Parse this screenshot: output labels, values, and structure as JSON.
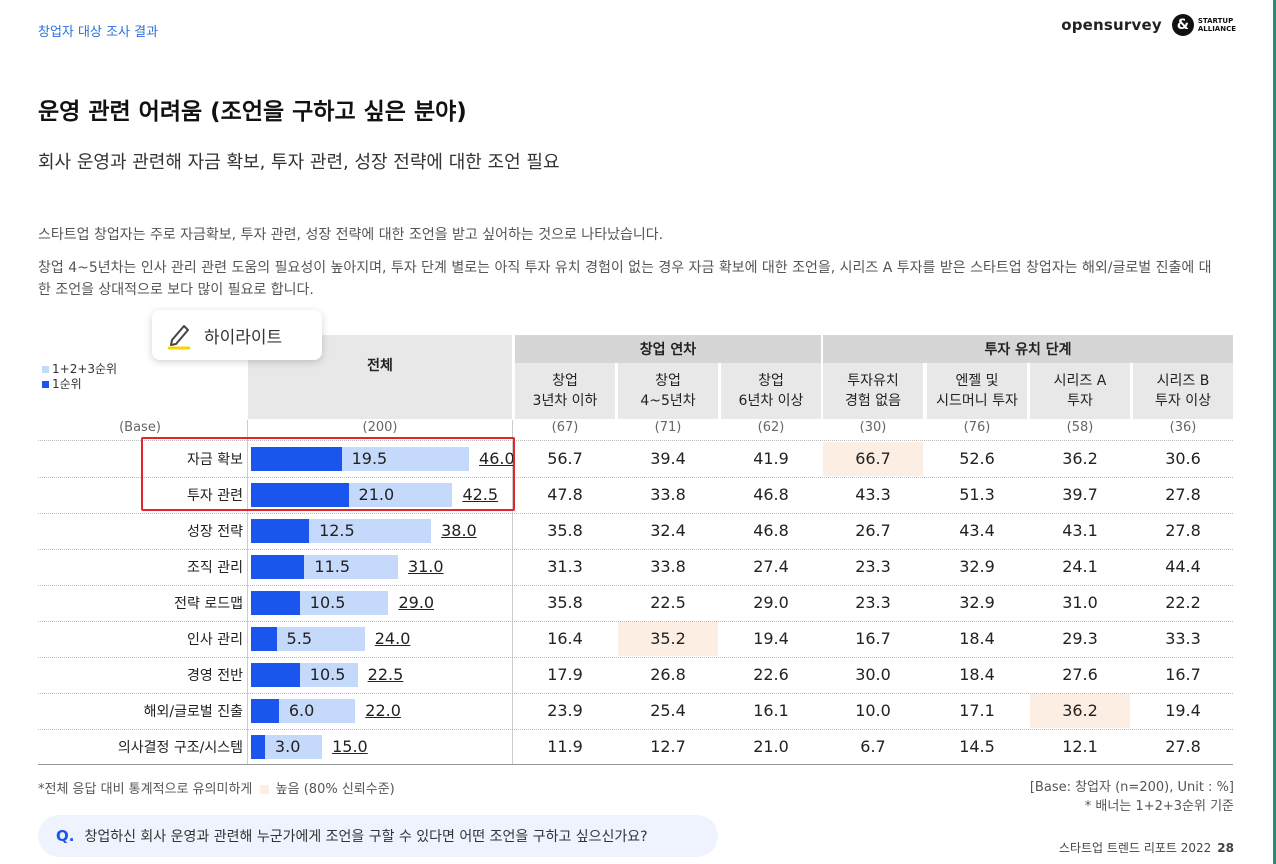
{
  "header": {
    "section": "창업자 대상 조사 결과",
    "brand1": "opensurvey",
    "brand2_line1": "STARTUP",
    "brand2_line2": "ALLIANCE"
  },
  "title": "운영 관련 어려움 (조언을 구하고 싶은 분야)",
  "subtitle": "회사 운영과 관련해 자금 확보, 투자 관련, 성장 전략에 대한 조언 필요",
  "desc1": "스타트업 창업자는 주로 자금확보, 투자 관련, 성장 전략에 대한 조언을 받고 싶어하는 것으로 나타났습니다.",
  "desc2": "창업 4~5년차는 인사 관리 관련 도움의 필요성이 높아지며, 투자 단계 별로는 아직 투자 유치 경험이 없는 경우 자금 확보에 대한 조언을, 시리즈 A 투자를 받은 스타트업 창업자는 해외/글로벌 진출에 대한 조언을 상대적으로 보다 많이 필요로 합니다.",
  "highlight_button": "하이라이트",
  "legend": {
    "top3": "1+2+3순위",
    "top1": "1순위",
    "light_color": "#c5d9fb",
    "dark_color": "#1a56ee"
  },
  "table": {
    "total_header": "전체",
    "group_years": "창업 연차",
    "group_invest": "투자 유치 단계",
    "columns": [
      "창업\n3년차 이하",
      "창업\n4~5년차",
      "창업\n6년차 이상",
      "투자유치\n경험 없음",
      "엔젤 및\n시드머니 투자",
      "시리즈 A\n투자",
      "시리즈 B\n투자 이상"
    ],
    "base_label": "(Base)",
    "base_total": "(200)",
    "bases": [
      "(67)",
      "(71)",
      "(62)",
      "(30)",
      "(76)",
      "(58)",
      "(36)"
    ],
    "highlight_color": "#fdeee4",
    "rows": [
      {
        "label": "자금 확보",
        "top1": 19.5,
        "top3": 46.0,
        "top1_text": "19.5",
        "top3_text": "46.0",
        "values": [
          "56.7",
          "39.4",
          "41.9",
          "66.7",
          "52.6",
          "36.2",
          "30.6"
        ],
        "highlight": [
          3
        ]
      },
      {
        "label": "투자 관련",
        "top1": 21.0,
        "top3": 42.5,
        "top1_text": "21.0",
        "top3_text": "42.5",
        "values": [
          "47.8",
          "33.8",
          "46.8",
          "43.3",
          "51.3",
          "39.7",
          "27.8"
        ],
        "highlight": []
      },
      {
        "label": "성장 전략",
        "top1": 12.5,
        "top3": 38.0,
        "top1_text": "12.5",
        "top3_text": "38.0",
        "values": [
          "35.8",
          "32.4",
          "46.8",
          "26.7",
          "43.4",
          "43.1",
          "27.8"
        ],
        "highlight": []
      },
      {
        "label": "조직 관리",
        "top1": 11.5,
        "top3": 31.0,
        "top1_text": "11.5",
        "top3_text": "31.0",
        "values": [
          "31.3",
          "33.8",
          "27.4",
          "23.3",
          "32.9",
          "24.1",
          "44.4"
        ],
        "highlight": []
      },
      {
        "label": "전략 로드맵",
        "top1": 10.5,
        "top3": 29.0,
        "top1_text": "10.5",
        "top3_text": "29.0",
        "values": [
          "35.8",
          "22.5",
          "29.0",
          "23.3",
          "32.9",
          "31.0",
          "22.2"
        ],
        "highlight": []
      },
      {
        "label": "인사 관리",
        "top1": 5.5,
        "top3": 24.0,
        "top1_text": "5.5",
        "top3_text": "24.0",
        "values": [
          "16.4",
          "35.2",
          "19.4",
          "16.7",
          "18.4",
          "29.3",
          "33.3"
        ],
        "highlight": [
          1
        ]
      },
      {
        "label": "경영 전반",
        "top1": 10.5,
        "top3": 22.5,
        "top1_text": "10.5",
        "top3_text": "22.5",
        "values": [
          "17.9",
          "26.8",
          "22.6",
          "30.0",
          "18.4",
          "27.6",
          "16.7"
        ],
        "highlight": []
      },
      {
        "label": "해외/글로벌 진출",
        "top1": 6.0,
        "top3": 22.0,
        "top1_text": "6.0",
        "top3_text": "22.0",
        "values": [
          "23.9",
          "25.4",
          "16.1",
          "10.0",
          "17.1",
          "36.2",
          "19.4"
        ],
        "highlight": [
          5
        ]
      },
      {
        "label": "의사결정 구조/시스템",
        "top1": 3.0,
        "top3": 15.0,
        "top1_text": "3.0",
        "top3_text": "15.0",
        "values": [
          "11.9",
          "12.7",
          "21.0",
          "6.7",
          "14.5",
          "12.1",
          "27.8"
        ],
        "highlight": []
      }
    ]
  },
  "footnote_main": "*전체 응답 대비 통계적으로 유의미하게",
  "footnote_legend": "높음 (80% 신뢰수준)",
  "footnote_base": "[Base: 창업자 (n=200), Unit : %]",
  "footnote_banner": "* 배너는 1+2+3순위 기준",
  "question_prefix": "Q.",
  "question": "창업하신 회사 운영과 관련해 누군가에게 조언을 구할 수 있다면 어떤 조언을 구하고 싶으신가요?",
  "report_name": "스타트업 트렌드 리포트 2022",
  "page_number": "28"
}
